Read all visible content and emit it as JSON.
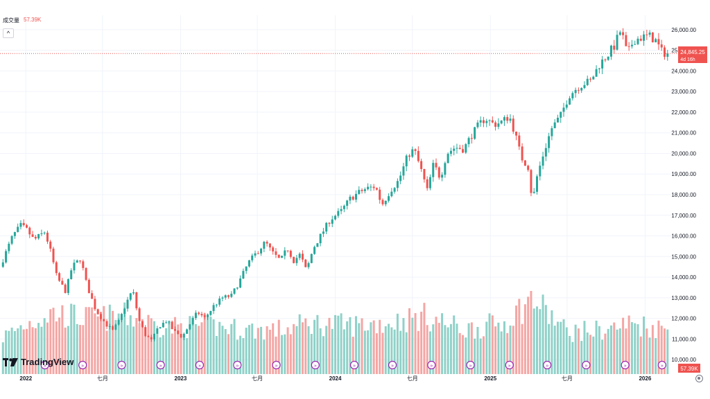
{
  "legend": {
    "label": "成交量",
    "value": "57.39K"
  },
  "logo_text": "TradingView",
  "price_label": {
    "value": "24,845.25",
    "countdown": "4d 16h"
  },
  "volume_label": "57.39K",
  "colors": {
    "up": "#26a69a",
    "down": "#ef5350",
    "vol_up": "#8fd1c8",
    "vol_down": "#f4a6a4",
    "grid": "#f0f3fa",
    "marker": "#9c27b0"
  },
  "chart_data": {
    "type": "candlestick",
    "title": "",
    "y_axis": {
      "ticks": [
        "10,000.00",
        "11,000.00",
        "12,000.00",
        "13,000.00",
        "14,000.00",
        "15,000.00",
        "16,000.00",
        "17,000.00",
        "18,000.00",
        "19,000.00",
        "20,000.00",
        "21,000.00",
        "22,000.00",
        "23,000.00",
        "24,000.00",
        "25,000.00",
        "26,000.00"
      ],
      "range": [
        9300,
        26700
      ]
    },
    "x_axis": {
      "ticks": [
        {
          "label": "2022",
          "date": "2022-01"
        },
        {
          "label": "七月",
          "date": "2022-07"
        },
        {
          "label": "2023",
          "date": "2023-01"
        },
        {
          "label": "七月",
          "date": "2023-07"
        },
        {
          "label": "2024",
          "date": "2024-01"
        },
        {
          "label": "七月",
          "date": "2024-07"
        },
        {
          "label": "2025",
          "date": "2025-01"
        },
        {
          "label": "七月",
          "date": "2025-07"
        },
        {
          "label": "2026",
          "date": "2026-01"
        }
      ],
      "range": [
        "2021-11-01",
        "2026-03-15"
      ]
    },
    "last_price": 24845.25,
    "price_path": [
      [
        "2021-11-01",
        14500
      ],
      [
        "2021-12-01",
        16000
      ],
      [
        "2021-12-20",
        16500
      ],
      [
        "2022-01-03",
        16300
      ],
      [
        "2022-01-20",
        15800
      ],
      [
        "2022-02-15",
        16200
      ],
      [
        "2022-03-01",
        15200
      ],
      [
        "2022-03-15",
        14000
      ],
      [
        "2022-04-05",
        13300
      ],
      [
        "2022-04-20",
        14500
      ],
      [
        "2022-05-10",
        14900
      ],
      [
        "2022-05-25",
        13600
      ],
      [
        "2022-06-15",
        12400
      ],
      [
        "2022-07-10",
        11700
      ],
      [
        "2022-07-25",
        11400
      ],
      [
        "2022-08-10",
        11900
      ],
      [
        "2022-08-25",
        12700
      ],
      [
        "2022-09-10",
        13400
      ],
      [
        "2022-09-25",
        11900
      ],
      [
        "2022-10-10",
        11200
      ],
      [
        "2022-10-25",
        10900
      ],
      [
        "2022-11-10",
        11600
      ],
      [
        "2022-11-30",
        11900
      ],
      [
        "2022-12-15",
        11400
      ],
      [
        "2023-01-05",
        11100
      ],
      [
        "2023-01-25",
        11800
      ],
      [
        "2023-02-10",
        12300
      ],
      [
        "2023-02-28",
        12000
      ],
      [
        "2023-03-20",
        12600
      ],
      [
        "2023-04-10",
        13000
      ],
      [
        "2023-05-01",
        13100
      ],
      [
        "2023-05-20",
        13800
      ],
      [
        "2023-06-10",
        14700
      ],
      [
        "2023-06-30",
        15200
      ],
      [
        "2023-07-20",
        15700
      ],
      [
        "2023-08-05",
        15200
      ],
      [
        "2023-08-25",
        14800
      ],
      [
        "2023-09-10",
        15400
      ],
      [
        "2023-09-25",
        14800
      ],
      [
        "2023-10-10",
        15100
      ],
      [
        "2023-10-25",
        14300
      ],
      [
        "2023-11-10",
        15400
      ],
      [
        "2023-11-30",
        16100
      ],
      [
        "2023-12-20",
        16800
      ],
      [
        "2024-01-15",
        17200
      ],
      [
        "2024-02-05",
        17800
      ],
      [
        "2024-02-25",
        18100
      ],
      [
        "2024-03-15",
        18300
      ],
      [
        "2024-04-05",
        18400
      ],
      [
        "2024-04-20",
        17500
      ],
      [
        "2024-05-10",
        18200
      ],
      [
        "2024-05-30",
        18700
      ],
      [
        "2024-06-20",
        19900
      ],
      [
        "2024-07-05",
        20200
      ],
      [
        "2024-07-20",
        19300
      ],
      [
        "2024-08-05",
        18200
      ],
      [
        "2024-08-20",
        19500
      ],
      [
        "2024-09-05",
        18800
      ],
      [
        "2024-09-20",
        20000
      ],
      [
        "2024-10-10",
        20300
      ],
      [
        "2024-10-30",
        20200
      ],
      [
        "2024-11-15",
        20800
      ],
      [
        "2024-12-05",
        21400
      ],
      [
        "2024-12-20",
        21700
      ],
      [
        "2025-01-10",
        21400
      ],
      [
        "2025-01-25",
        21500
      ],
      [
        "2025-02-15",
        21800
      ],
      [
        "2025-03-01",
        20900
      ],
      [
        "2025-03-15",
        19800
      ],
      [
        "2025-04-01",
        19300
      ],
      [
        "2025-04-10",
        17600
      ],
      [
        "2025-04-20",
        18800
      ],
      [
        "2025-05-05",
        19900
      ],
      [
        "2025-05-25",
        21200
      ],
      [
        "2025-06-15",
        21800
      ],
      [
        "2025-07-05",
        22800
      ],
      [
        "2025-07-25",
        23200
      ],
      [
        "2025-08-10",
        23400
      ],
      [
        "2025-08-25",
        23500
      ],
      [
        "2025-09-15",
        24300
      ],
      [
        "2025-10-05",
        24800
      ],
      [
        "2025-10-20",
        25200
      ],
      [
        "2025-11-05",
        26000
      ],
      [
        "2025-11-20",
        24800
      ],
      [
        "2025-12-05",
        25500
      ],
      [
        "2025-12-20",
        25600
      ],
      [
        "2026-01-10",
        25700
      ],
      [
        "2026-01-25",
        25500
      ],
      [
        "2026-02-10",
        24900
      ],
      [
        "2026-02-25",
        24845
      ]
    ],
    "volume": {
      "last": "57.39K",
      "profile": [
        [
          "2021-11-01",
          0.32
        ],
        [
          "2022-01-01",
          0.45
        ],
        [
          "2022-03-01",
          0.55
        ],
        [
          "2022-06-01",
          0.5
        ],
        [
          "2022-09-01",
          0.52
        ],
        [
          "2022-12-01",
          0.42
        ],
        [
          "2023-03-01",
          0.44
        ],
        [
          "2023-06-01",
          0.4
        ],
        [
          "2023-09-01",
          0.4
        ],
        [
          "2023-11-01",
          0.46
        ],
        [
          "2024-02-01",
          0.44
        ],
        [
          "2024-05-01",
          0.46
        ],
        [
          "2024-08-01",
          0.52
        ],
        [
          "2024-11-01",
          0.4
        ],
        [
          "2025-02-01",
          0.46
        ],
        [
          "2025-04-10",
          0.68
        ],
        [
          "2025-07-01",
          0.38
        ],
        [
          "2025-10-01",
          0.4
        ],
        [
          "2025-12-01",
          0.46
        ],
        [
          "2026-02-25",
          0.4
        ]
      ]
    },
    "grid": true,
    "legend": "top-left"
  }
}
